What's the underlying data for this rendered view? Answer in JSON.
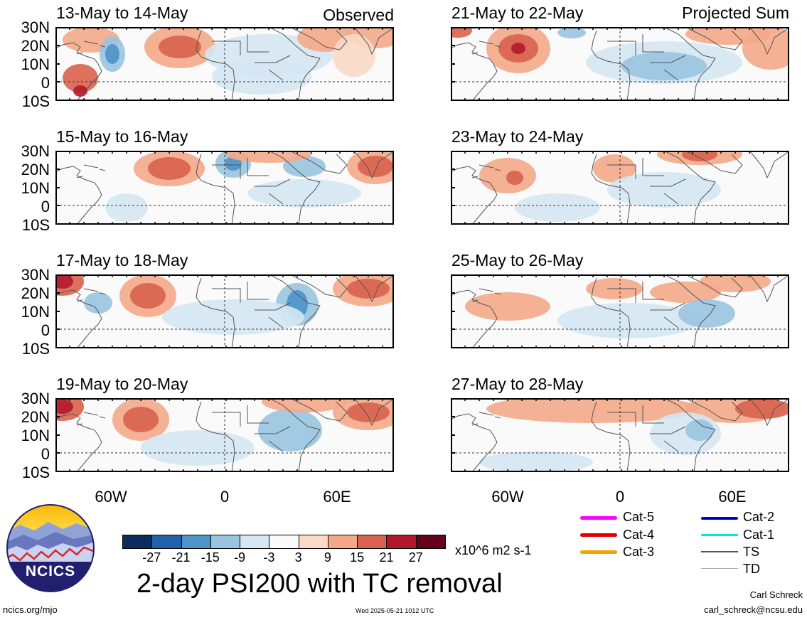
{
  "header": {
    "observed_label": "Observed",
    "projected_label": "Projected Sum"
  },
  "panels_left": [
    {
      "title": "13-May to 14-May"
    },
    {
      "title": "15-May to 16-May"
    },
    {
      "title": "17-May to 18-May"
    },
    {
      "title": "19-May to 20-May"
    }
  ],
  "panels_right": [
    {
      "title": "21-May to 22-May"
    },
    {
      "title": "23-May to 24-May"
    },
    {
      "title": "25-May to 26-May"
    },
    {
      "title": "27-May to 28-May"
    }
  ],
  "lat_labels": [
    "30N",
    "20N",
    "10N",
    "0",
    "10S"
  ],
  "lon_labels": [
    "60W",
    "0",
    "60E"
  ],
  "colorbar": {
    "colors": [
      "#0b2d5e",
      "#1f62a8",
      "#4d94c8",
      "#99c4e0",
      "#d5e7f3",
      "#fafafa",
      "#fbd9c7",
      "#f3a888",
      "#d9624c",
      "#b2182b",
      "#67001f"
    ],
    "tick_labels": [
      "-27",
      "-21",
      "-15",
      "-9",
      "-3",
      "3",
      "9",
      "15",
      "21",
      "27"
    ],
    "units": "x10^6 m2 s-1"
  },
  "main_title": "2-day PSI200 with TC removal",
  "legend": [
    {
      "label": "Cat-5",
      "color": "#ff00ff"
    },
    {
      "label": "Cat-4",
      "color": "#e60000"
    },
    {
      "label": "Cat-3",
      "color": "#f5a300"
    },
    {
      "label": "Cat-2",
      "color": "#0000cc"
    },
    {
      "label": "Cat-1",
      "color": "#00e5ee"
    },
    {
      "label": "TS",
      "color": "#555555"
    },
    {
      "label": "TD",
      "color": "#aaaaaa"
    }
  ],
  "logo_text": "NCICS",
  "footer": {
    "url": "ncics.org/mjo",
    "timestamp": "Wed 2025-05-21 1012 UTC",
    "author": "Carl Schreck",
    "email": "carl_schreck@ncsu.edu"
  }
}
